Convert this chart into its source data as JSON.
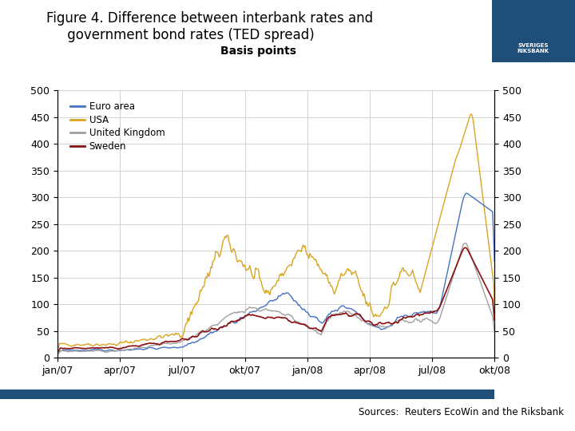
{
  "title_line1": "Figure 4. Difference between interbank rates and",
  "title_line2": "     government bond rates (TED spread)",
  "subtitle": "Basis points",
  "sources_text": "Sources:  Reuters EcoWin and the Riksbank",
  "line_colors": {
    "euro_area": "#4472C4",
    "usa": "#DAA520",
    "uk": "#A0A0A0",
    "sweden": "#8B1010"
  },
  "legend_labels": [
    "Euro area",
    "USA",
    "United Kingdom",
    "Sweden"
  ],
  "x_tick_labels": [
    "jan/07",
    "apr/07",
    "jul/07",
    "okt/07",
    "jan/08",
    "apr/08",
    "jul/08",
    "okt/08"
  ],
  "y_ticks": [
    0,
    50,
    100,
    150,
    200,
    250,
    300,
    350,
    400,
    450,
    500
  ],
  "ylim": [
    0,
    500
  ],
  "bar_color_bottom": "#1F4E79",
  "background_color": "#FFFFFF",
  "grid_color": "#CCCCCC",
  "logo_box_color": "#1F4E79"
}
